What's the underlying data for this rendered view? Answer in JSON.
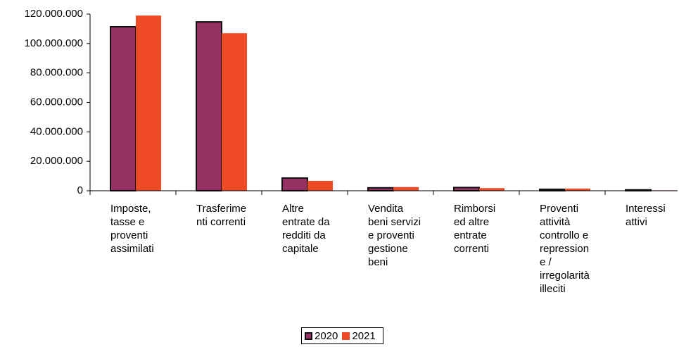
{
  "chart_data": {
    "type": "bar",
    "categories": [
      "Imposte,\ntasse e\nproventi\nassimilati",
      "Trasferime\nnti correnti",
      "Altre\nentrate da\nredditi da\ncapitale",
      "Vendita\nbeni servizi\ne proventi\ngestione\nbeni",
      "Rimborsi\ned altre\nentrate\ncorrenti",
      "Proventi\nattività\ncontrollo e\nrepression\ne /\nirregolarità\nilleciti",
      "Interessi\nattivi"
    ],
    "series": [
      {
        "name": "2020",
        "color": "#953163",
        "values": [
          111400000,
          114700000,
          8600000,
          2000000,
          2200000,
          1000000,
          600000
        ]
      },
      {
        "name": "2021",
        "color": "#ef4a26",
        "values": [
          119000000,
          107000000,
          6700000,
          2500000,
          1800000,
          1500000,
          300000
        ]
      }
    ],
    "ylim": [
      0,
      120000000
    ],
    "yticks": [
      0,
      {
        "value": 20000000,
        "label": "20.000.000"
      },
      {
        "value": 40000000,
        "label": "40.000.000"
      },
      {
        "value": 60000000,
        "label": "60.000.000"
      },
      {
        "value": 80000000,
        "label": "80.000.000"
      },
      {
        "value": 100000000,
        "label": "100.000.000"
      },
      {
        "value": 120000000,
        "label": "120.000.000"
      }
    ],
    "grid": false,
    "legend": "bottom"
  }
}
